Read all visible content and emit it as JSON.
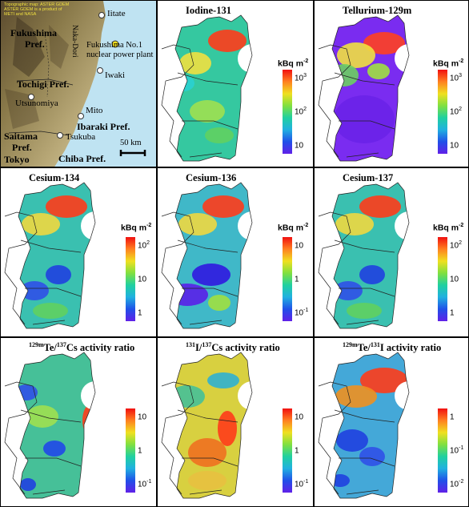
{
  "reference_map": {
    "credit_lines": [
      "Topographic map: ASTER GDEM",
      "ASTER GDEM is a product of",
      "METI and NASA"
    ],
    "prefectures": [
      "Fukushima",
      "Pref.",
      "Tochigi Pref.",
      "Ibaraki Pref.",
      "Saitama",
      "Pref.",
      "Tokyo",
      "Chiba Pref."
    ],
    "cities": [
      "Iitate",
      "Iwaki",
      "Utsunomiya",
      "Mito",
      "Tsukuba"
    ],
    "plant": [
      "Fukushima No.1",
      "nuclear power plant"
    ],
    "river": "Naka-Dori",
    "scale_label": "50 km"
  },
  "panels": [
    {
      "title_pre": "",
      "title_sup1": "",
      "title_mid": "Iodine-131",
      "title_sup2": "",
      "title_post": "",
      "unit": "kBq m",
      "unit_sup": "-2",
      "ticks": [
        {
          "b": "10",
          "e": "3"
        },
        {
          "b": "10",
          "e": "2"
        },
        {
          "b": "10",
          "e": ""
        }
      ],
      "scheme": "iodine"
    },
    {
      "title_pre": "",
      "title_sup1": "",
      "title_mid": "Tellurium-129m",
      "title_sup2": "",
      "title_post": "",
      "unit": "kBq m",
      "unit_sup": "-2",
      "ticks": [
        {
          "b": "10",
          "e": "3"
        },
        {
          "b": "10",
          "e": "2"
        },
        {
          "b": "10",
          "e": ""
        }
      ],
      "scheme": "tellurium"
    },
    {
      "title_pre": "",
      "title_sup1": "",
      "title_mid": "Cesium-134",
      "title_sup2": "",
      "title_post": "",
      "unit": "kBq m",
      "unit_sup": "-2",
      "ticks": [
        {
          "b": "10",
          "e": "2"
        },
        {
          "b": "10",
          "e": ""
        },
        {
          "b": "1",
          "e": ""
        }
      ],
      "scheme": "cesium"
    },
    {
      "title_pre": "",
      "title_sup1": "",
      "title_mid": "Cesium-136",
      "title_sup2": "",
      "title_post": "",
      "unit": "kBq m",
      "unit_sup": "-2",
      "ticks": [
        {
          "b": "10",
          "e": ""
        },
        {
          "b": "1",
          "e": ""
        },
        {
          "b": "10",
          "e": "-1"
        }
      ],
      "scheme": "cs136"
    },
    {
      "title_pre": "",
      "title_sup1": "",
      "title_mid": "Cesium-137",
      "title_sup2": "",
      "title_post": "",
      "unit": "kBq m",
      "unit_sup": "-2",
      "ticks": [
        {
          "b": "10",
          "e": "2"
        },
        {
          "b": "10",
          "e": ""
        },
        {
          "b": "1",
          "e": ""
        }
      ],
      "scheme": "cesium"
    },
    {
      "title_pre": "",
      "title_sup1": "129m",
      "title_mid": "Te/",
      "title_sup2": "137",
      "title_post": "Cs activity ratio",
      "unit": "",
      "unit_sup": "",
      "ticks": [
        {
          "b": "10",
          "e": ""
        },
        {
          "b": "1",
          "e": ""
        },
        {
          "b": "10",
          "e": "-1"
        }
      ],
      "scheme": "te_cs"
    },
    {
      "title_pre": "",
      "title_sup1": "131",
      "title_mid": "I/",
      "title_sup2": "137",
      "title_post": "Cs activity ratio",
      "unit": "",
      "unit_sup": "",
      "ticks": [
        {
          "b": "10",
          "e": ""
        },
        {
          "b": "1",
          "e": ""
        },
        {
          "b": "10",
          "e": "-1"
        }
      ],
      "scheme": "i_cs"
    },
    {
      "title_pre": "",
      "title_sup1": "129m",
      "title_mid": "Te/",
      "title_sup2": "131",
      "title_post": "I activity ratio",
      "unit": "",
      "unit_sup": "",
      "ticks": [
        {
          "b": "1",
          "e": ""
        },
        {
          "b": "10",
          "e": "-1"
        },
        {
          "b": "10",
          "e": "-2"
        }
      ],
      "scheme": "te_i"
    }
  ]
}
